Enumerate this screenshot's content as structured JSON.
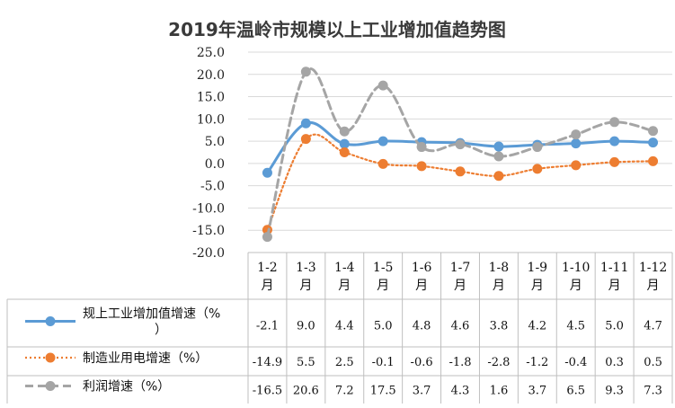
{
  "chart_data": {
    "type": "line",
    "title": "2019年温岭市规模以上工业增加值趋势图",
    "categories": [
      "1-2月",
      "1-3月",
      "1-4月",
      "1-5月",
      "1-6月",
      "1-7月",
      "1-8月",
      "1-9月",
      "1-10月",
      "1-11月",
      "1-12月"
    ],
    "ylim": [
      -20,
      25
    ],
    "yticks": [
      "25.0",
      "20.0",
      "15.0",
      "10.0",
      "5.0",
      "0.0",
      "-5.0",
      "-10.0",
      "-15.0",
      "-20.0"
    ],
    "grid": true,
    "legend_placement": "data-table",
    "series": [
      {
        "name": "规上工业增加值增速（%）",
        "color": "#5b9bd5",
        "line_style": "solid",
        "values": [
          -2.1,
          9.0,
          4.4,
          5.0,
          4.8,
          4.6,
          3.8,
          4.2,
          4.5,
          5.0,
          4.7
        ],
        "labels": [
          "-2.1",
          "9.0",
          "4.4",
          "5.0",
          "4.8",
          "4.6",
          "3.8",
          "4.2",
          "4.5",
          "5.0",
          "4.7"
        ]
      },
      {
        "name": "制造业用电增速（%）",
        "color": "#ed7d31",
        "line_style": "dotted",
        "values": [
          -14.9,
          5.5,
          2.5,
          -0.1,
          -0.6,
          -1.8,
          -2.8,
          -1.2,
          -0.4,
          0.3,
          0.5
        ],
        "labels": [
          "-14.9",
          "5.5",
          "2.5",
          "-0.1",
          "-0.6",
          "-1.8",
          "-2.8",
          "-1.2",
          "-0.4",
          "0.3",
          "0.5"
        ]
      },
      {
        "name": "利润增速（%）",
        "color": "#a5a5a5",
        "line_style": "dashed",
        "values": [
          -16.5,
          20.6,
          7.2,
          17.5,
          3.7,
          4.3,
          1.6,
          3.7,
          6.5,
          9.3,
          7.3
        ],
        "labels": [
          "-16.5",
          "20.6",
          "7.2",
          "17.5",
          "3.7",
          "4.3",
          "1.6",
          "3.7",
          "6.5",
          "9.3",
          "7.3"
        ]
      }
    ]
  }
}
